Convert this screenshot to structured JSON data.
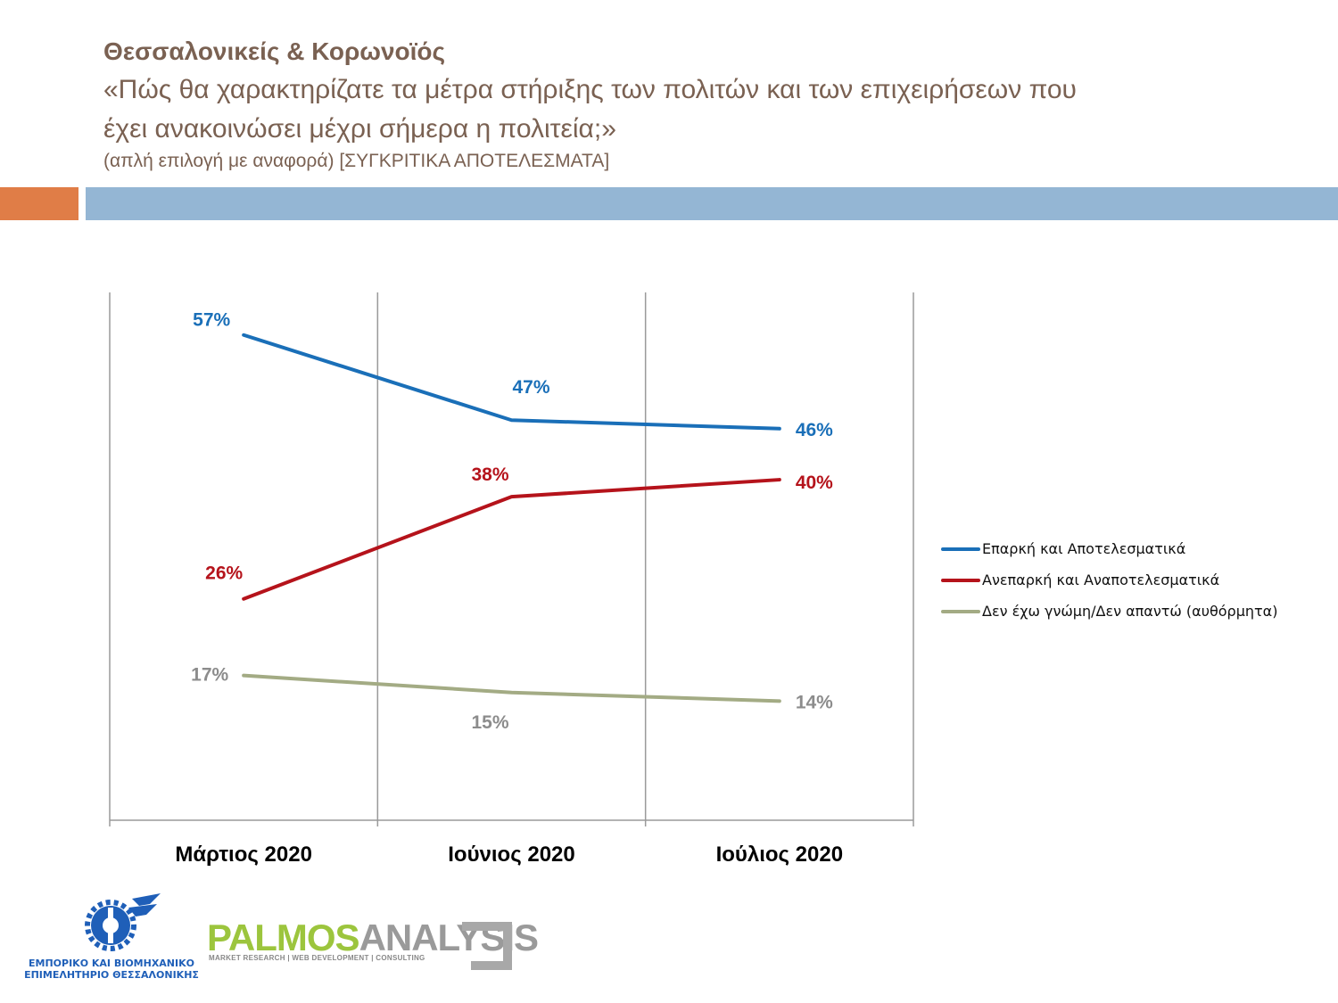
{
  "header": {
    "title": "Θεσσαλονικείς & Κορωνοϊός",
    "question_line1": "«Πώς θα χαρακτηρίζατε τα μέτρα στήριξης των πολιτών και των επιχειρήσεων που",
    "question_line2": "έχει ανακοινώσει μέχρι σήμερα η πολιτεία;»",
    "note": "(απλή επιλογή με αναφορά) [ΣΥΓΚΡΙΤΙΚΑ  ΑΠΟΤΕΛΕΣΜΑΤΑ]"
  },
  "chart_data": {
    "type": "line",
    "categories": [
      "Μάρτιος 2020",
      "Ιούνιος 2020",
      "Ιούλιος 2020"
    ],
    "ylim": [
      0,
      62
    ],
    "grid": "vertical",
    "legend_position": "right",
    "series": [
      {
        "name": "Επαρκή και Αποτελεσματικά",
        "values": [
          57,
          47,
          46
        ],
        "labels": [
          "57%",
          "47%",
          "46%"
        ],
        "color": "#1a6fb8"
      },
      {
        "name": "Ανεπαρκή και Αναποτελεσματικά",
        "values": [
          26,
          38,
          40
        ],
        "labels": [
          "26%",
          "38%",
          "40%"
        ],
        "color": "#b5131b"
      },
      {
        "name": "Δεν έχω γνώμη/Δεν απαντώ (αυθόρμητα)",
        "values": [
          17,
          15,
          14
        ],
        "labels": [
          "17%",
          "15%",
          "14%"
        ],
        "color": "#a3ab84",
        "label_color": "#8c8c8c"
      }
    ]
  },
  "logos": {
    "left_line1": "ΕΜΠΟΡΙΚΟ ΚΑΙ ΒΙΟΜΗΧΑΝΙΚΟ",
    "left_line2": "ΕΠΙΜΕΛΗΤΗΡΙΟ ΘΕΣΣΑΛΟΝΙΚΗΣ",
    "right_word_part1": "PALMOS",
    "right_word_part2": "ANALYSIS",
    "right_tagline": "MARKET RESEARCH | WEB DEVELOPMENT | CONSULTING"
  }
}
